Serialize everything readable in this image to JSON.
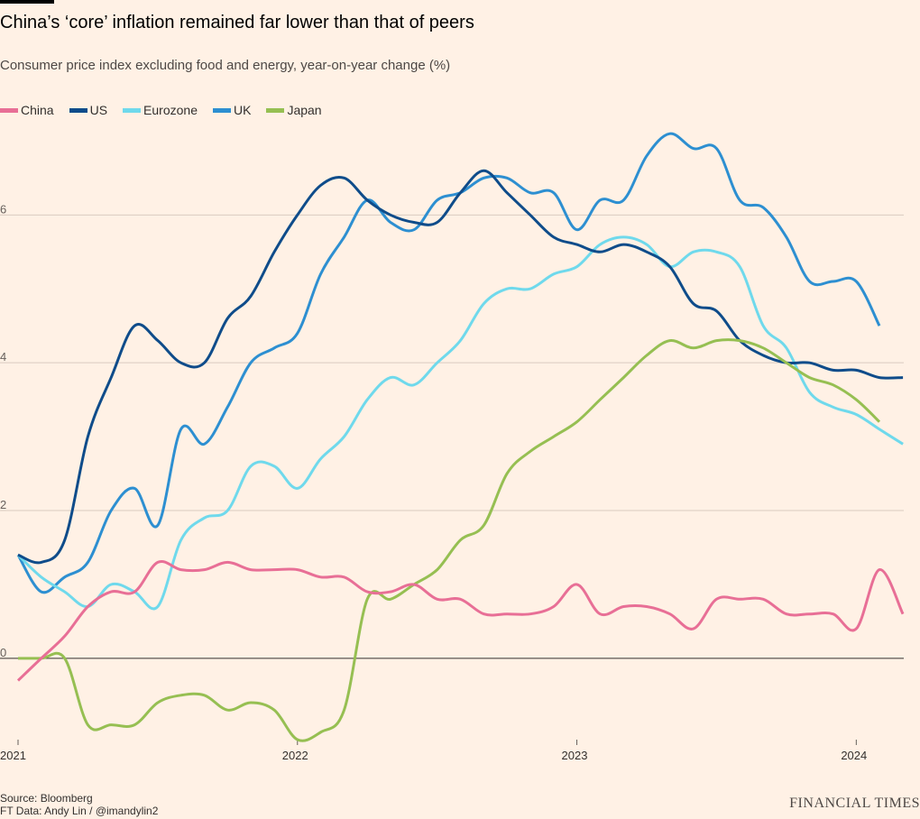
{
  "header": {
    "title": "China’s ‘core’ inflation remained far lower than that of peers",
    "subtitle": "Consumer price index excluding food and energy, year-on-year change (%)"
  },
  "footer": {
    "source": "Source: Bloomberg",
    "credit": "FT Data: Andy Lin / @imandylin2",
    "brand": "FINANCIAL TIMES"
  },
  "colors": {
    "background": "#fff1e5",
    "China": "#e86f96",
    "US": "#0f4c8a",
    "Eurozone": "#6fd9ec",
    "UK": "#2d8fd1",
    "Japan": "#96bf52"
  },
  "chart_data": {
    "type": "line",
    "x_unit": "year",
    "xlim": [
      2021,
      2024.17
    ],
    "ylim": [
      -1.1,
      7.2
    ],
    "y_ticks": [
      0,
      2,
      4,
      6
    ],
    "y_tick_labels": [
      "0",
      "2",
      "4",
      "6"
    ],
    "x_ticks": [
      2021,
      2022,
      2023,
      2024
    ],
    "x_tick_labels": [
      "2021",
      "2022",
      "2023",
      "2024"
    ],
    "grid": true,
    "legend_position": "top-left",
    "series": [
      {
        "name": "China",
        "x": [
          2021,
          2021.083,
          2021.167,
          2021.25,
          2021.333,
          2021.417,
          2021.5,
          2021.583,
          2021.667,
          2021.75,
          2021.833,
          2021.917,
          2022,
          2022.083,
          2022.167,
          2022.25,
          2022.333,
          2022.417,
          2022.5,
          2022.583,
          2022.667,
          2022.75,
          2022.833,
          2022.917,
          2023,
          2023.083,
          2023.167,
          2023.25,
          2023.333,
          2023.417,
          2023.5,
          2023.583,
          2023.667,
          2023.75,
          2023.833,
          2023.917,
          2024,
          2024.083,
          2024.167
        ],
        "values": [
          -0.3,
          0.0,
          0.3,
          0.7,
          0.9,
          0.9,
          1.3,
          1.2,
          1.2,
          1.3,
          1.2,
          1.2,
          1.2,
          1.1,
          1.1,
          0.9,
          0.9,
          1.0,
          0.8,
          0.8,
          0.6,
          0.6,
          0.6,
          0.7,
          1.0,
          0.6,
          0.7,
          0.7,
          0.6,
          0.4,
          0.8,
          0.8,
          0.8,
          0.6,
          0.6,
          0.6,
          0.4,
          1.2,
          0.6
        ]
      },
      {
        "name": "US",
        "x": [
          2021,
          2021.083,
          2021.167,
          2021.25,
          2021.333,
          2021.417,
          2021.5,
          2021.583,
          2021.667,
          2021.75,
          2021.833,
          2021.917,
          2022,
          2022.083,
          2022.167,
          2022.25,
          2022.333,
          2022.417,
          2022.5,
          2022.583,
          2022.667,
          2022.75,
          2022.833,
          2022.917,
          2023,
          2023.083,
          2023.167,
          2023.25,
          2023.333,
          2023.417,
          2023.5,
          2023.583,
          2023.667,
          2023.75,
          2023.833,
          2023.917,
          2024,
          2024.083,
          2024.167
        ],
        "values": [
          1.4,
          1.3,
          1.6,
          3.0,
          3.8,
          4.5,
          4.3,
          4.0,
          4.0,
          4.6,
          4.9,
          5.5,
          6.0,
          6.4,
          6.5,
          6.2,
          6.0,
          5.9,
          5.9,
          6.3,
          6.6,
          6.3,
          6.0,
          5.7,
          5.6,
          5.5,
          5.6,
          5.5,
          5.3,
          4.8,
          4.7,
          4.3,
          4.1,
          4.0,
          4.0,
          3.9,
          3.9,
          3.8,
          3.8
        ]
      },
      {
        "name": "Eurozone",
        "x": [
          2021,
          2021.083,
          2021.167,
          2021.25,
          2021.333,
          2021.417,
          2021.5,
          2021.583,
          2021.667,
          2021.75,
          2021.833,
          2021.917,
          2022,
          2022.083,
          2022.167,
          2022.25,
          2022.333,
          2022.417,
          2022.5,
          2022.583,
          2022.667,
          2022.75,
          2022.833,
          2022.917,
          2023,
          2023.083,
          2023.167,
          2023.25,
          2023.333,
          2023.417,
          2023.5,
          2023.583,
          2023.667,
          2023.75,
          2023.833,
          2023.917,
          2024,
          2024.083,
          2024.167
        ],
        "values": [
          1.4,
          1.1,
          0.9,
          0.7,
          1.0,
          0.9,
          0.7,
          1.6,
          1.9,
          2.0,
          2.6,
          2.6,
          2.3,
          2.7,
          3.0,
          3.5,
          3.8,
          3.7,
          4.0,
          4.3,
          4.8,
          5.0,
          5.0,
          5.2,
          5.3,
          5.6,
          5.7,
          5.6,
          5.3,
          5.5,
          5.5,
          5.3,
          4.5,
          4.2,
          3.6,
          3.4,
          3.3,
          3.1,
          2.9
        ]
      },
      {
        "name": "UK",
        "x": [
          2021,
          2021.083,
          2021.167,
          2021.25,
          2021.333,
          2021.417,
          2021.5,
          2021.583,
          2021.667,
          2021.75,
          2021.833,
          2021.917,
          2022,
          2022.083,
          2022.167,
          2022.25,
          2022.333,
          2022.417,
          2022.5,
          2022.583,
          2022.667,
          2022.75,
          2022.833,
          2022.917,
          2023,
          2023.083,
          2023.167,
          2023.25,
          2023.333,
          2023.417,
          2023.5,
          2023.583,
          2023.667,
          2023.75,
          2023.833,
          2023.917,
          2024,
          2024.083
        ],
        "values": [
          1.4,
          0.9,
          1.1,
          1.3,
          2.0,
          2.3,
          1.8,
          3.1,
          2.9,
          3.4,
          4.0,
          4.2,
          4.4,
          5.2,
          5.7,
          6.2,
          5.9,
          5.8,
          6.2,
          6.3,
          6.5,
          6.5,
          6.3,
          6.3,
          5.8,
          6.2,
          6.2,
          6.8,
          7.1,
          6.9,
          6.9,
          6.2,
          6.1,
          5.7,
          5.1,
          5.1,
          5.1,
          4.5
        ]
      },
      {
        "name": "Japan",
        "x": [
          2021,
          2021.083,
          2021.167,
          2021.25,
          2021.333,
          2021.417,
          2021.5,
          2021.583,
          2021.667,
          2021.75,
          2021.833,
          2021.917,
          2022,
          2022.083,
          2022.167,
          2022.25,
          2022.333,
          2022.417,
          2022.5,
          2022.583,
          2022.667,
          2022.75,
          2022.833,
          2022.917,
          2023,
          2023.083,
          2023.167,
          2023.25,
          2023.333,
          2023.417,
          2023.5,
          2023.583,
          2023.667,
          2023.75,
          2023.833,
          2023.917,
          2024,
          2024.083
        ],
        "values": [
          0.0,
          0.0,
          0.0,
          -0.9,
          -0.9,
          -0.9,
          -0.6,
          -0.5,
          -0.5,
          -0.7,
          -0.6,
          -0.7,
          -1.1,
          -1.0,
          -0.7,
          0.8,
          0.8,
          1.0,
          1.2,
          1.6,
          1.8,
          2.5,
          2.8,
          3.0,
          3.2,
          3.5,
          3.8,
          4.1,
          4.3,
          4.2,
          4.3,
          4.3,
          4.2,
          4.0,
          3.8,
          3.7,
          3.5,
          3.2
        ]
      }
    ]
  }
}
